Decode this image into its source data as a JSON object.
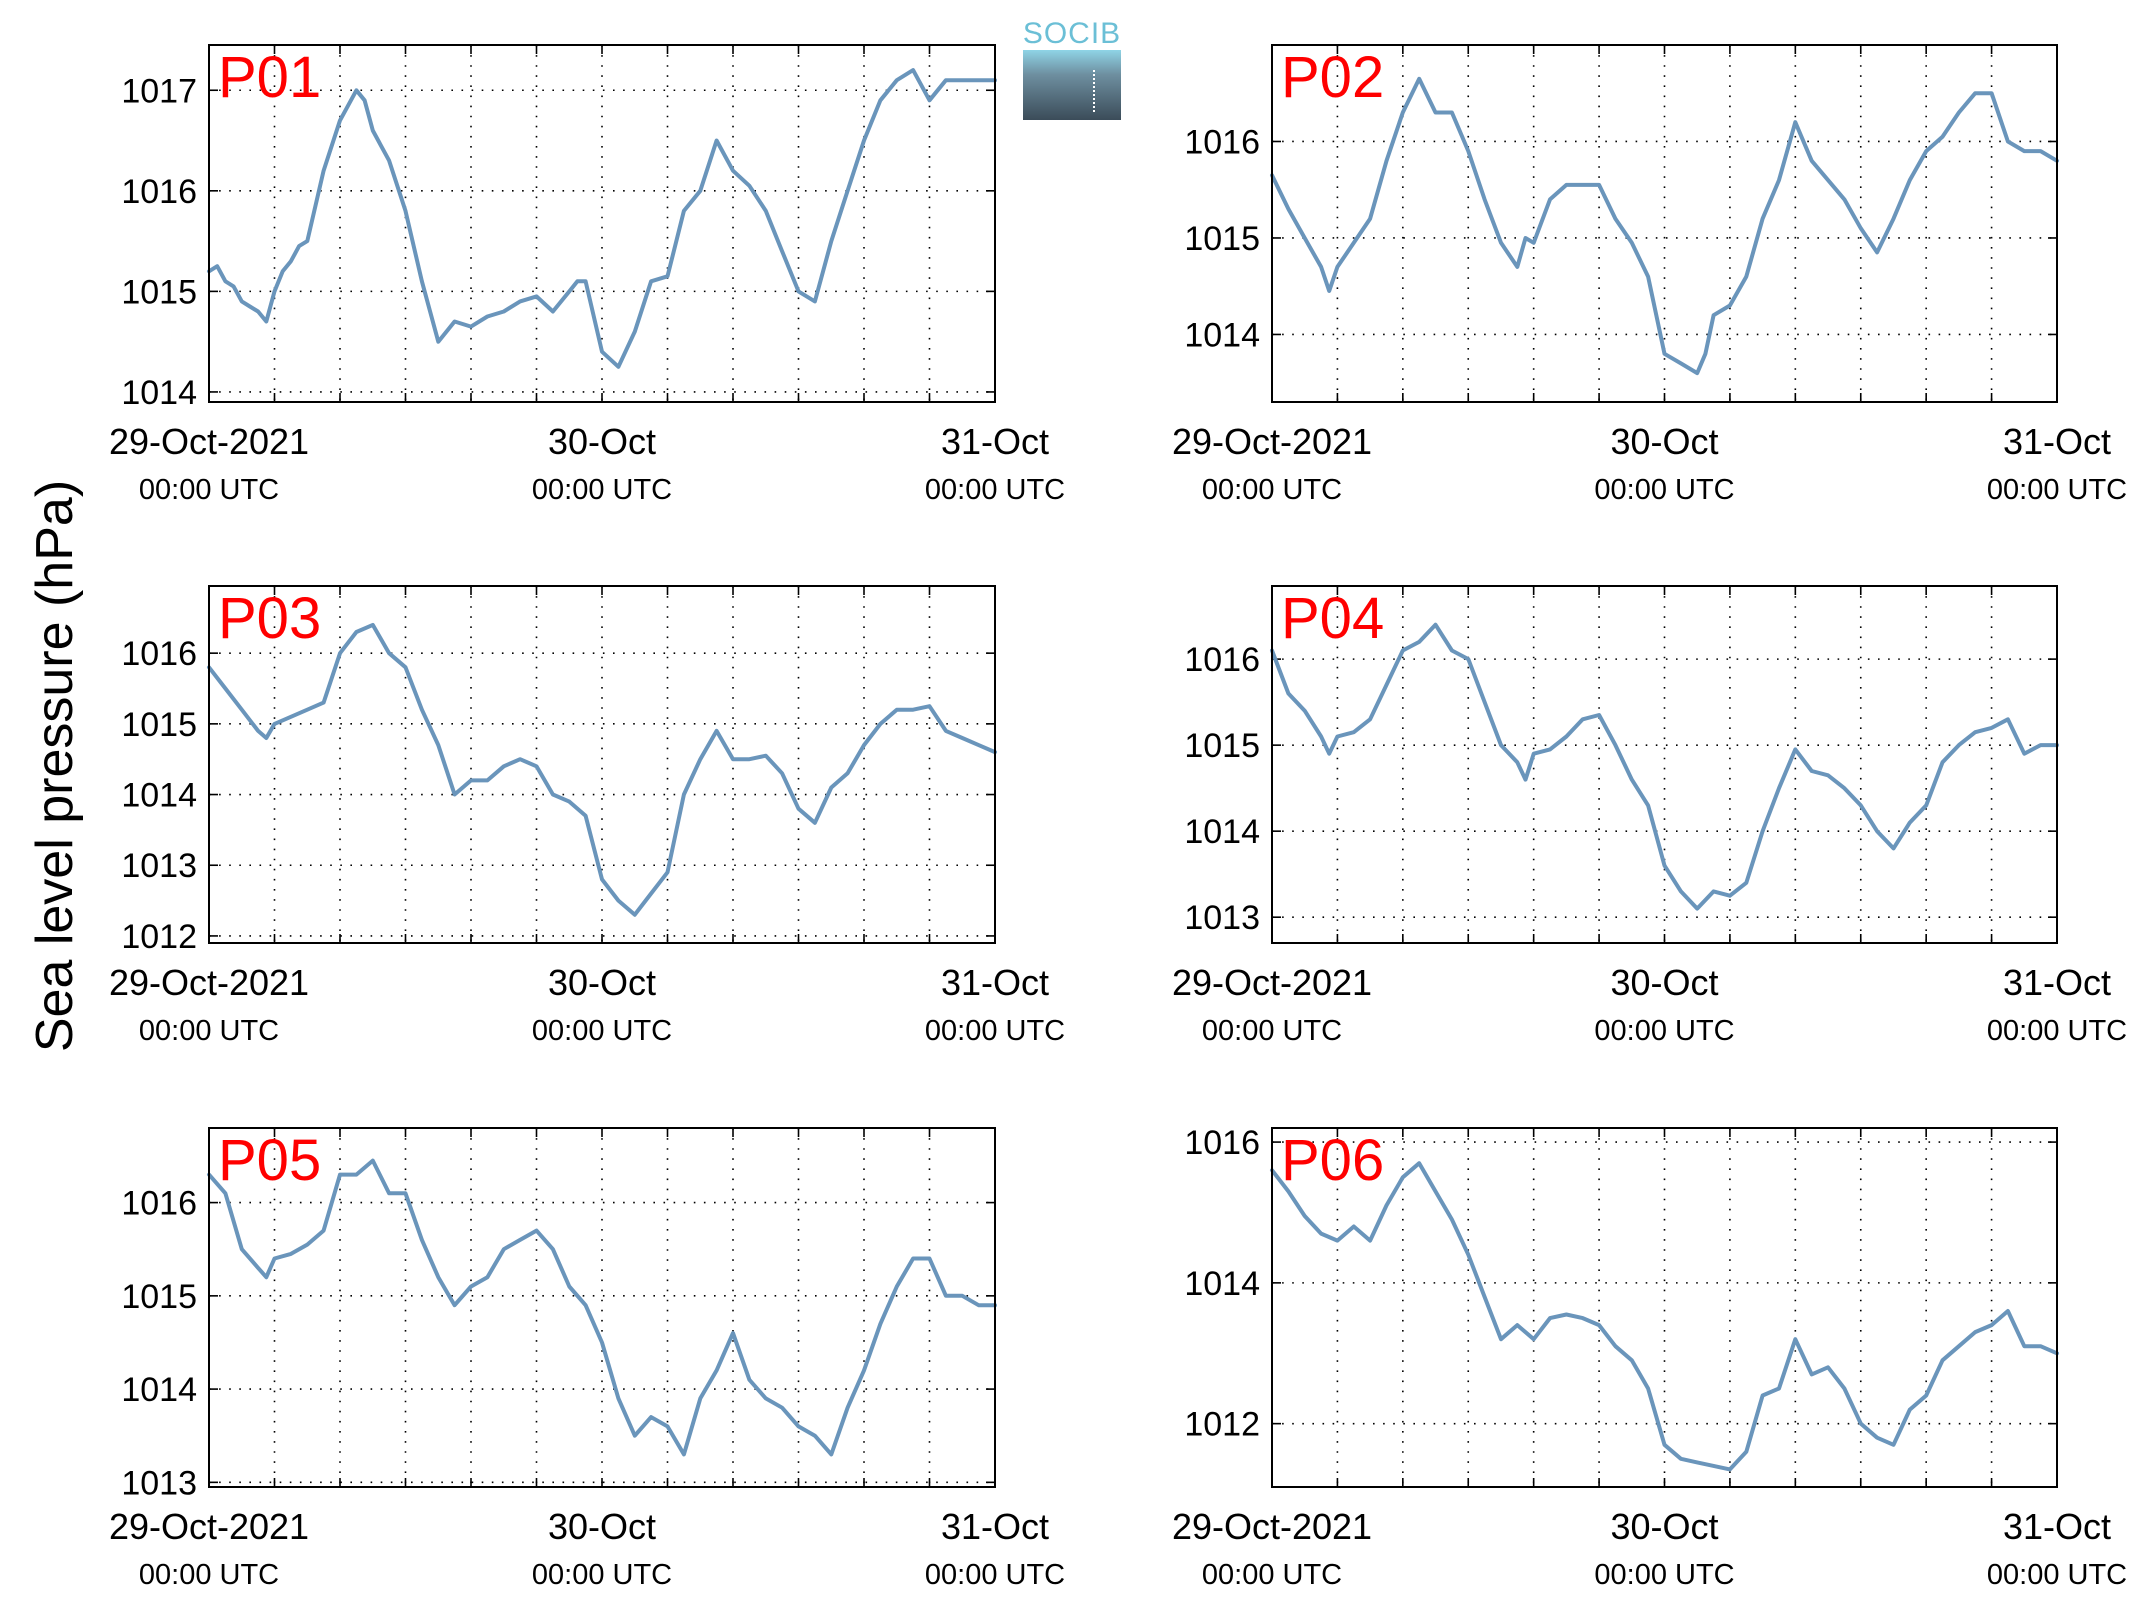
{
  "figure": {
    "ylabel": "Sea level pressure (hPa)",
    "logo_text": "SOCIB",
    "line_color": "#6a95bb",
    "label_color": "#ff0000",
    "time_ticks": [
      {
        "date": "29-Oct-2021",
        "time": "00:00 UTC"
      },
      {
        "date": "30-Oct",
        "time": "00:00 UTC"
      },
      {
        "date": "31-Oct",
        "time": "00:00 UTC"
      }
    ]
  },
  "chart_data": [
    {
      "type": "line",
      "label": "P01",
      "xlabel": "",
      "ylabel": "Sea level pressure (hPa)",
      "x_unit": "hours since 29-Oct-2021 00:00 UTC",
      "xlim": [
        0,
        48
      ],
      "ylim": [
        1013.9,
        1017.45
      ],
      "yticks": [
        1014,
        1015,
        1016,
        1017
      ],
      "grid": true,
      "x": [
        0,
        0.5,
        1,
        1.5,
        2,
        2.5,
        3,
        3.5,
        4,
        4.5,
        5,
        5.5,
        6,
        7,
        8,
        9,
        9.5,
        10,
        11,
        12,
        13,
        13.5,
        14,
        15,
        16,
        17,
        18,
        19,
        20,
        21,
        22,
        22.5,
        23,
        24,
        25,
        26,
        27,
        28,
        29,
        30,
        31,
        32,
        33,
        34,
        35,
        36,
        37,
        38,
        39,
        40,
        41,
        42,
        43,
        44,
        45,
        46,
        47,
        48
      ],
      "values": [
        1015.2,
        1015.25,
        1015.1,
        1015.05,
        1014.9,
        1014.85,
        1014.8,
        1014.7,
        1015.0,
        1015.2,
        1015.3,
        1015.45,
        1015.5,
        1016.2,
        1016.7,
        1017.0,
        1016.9,
        1016.6,
        1016.3,
        1015.8,
        1015.1,
        1014.8,
        1014.5,
        1014.7,
        1014.65,
        1014.75,
        1014.8,
        1014.9,
        1014.95,
        1014.8,
        1015.0,
        1015.1,
        1015.1,
        1014.4,
        1014.25,
        1014.6,
        1015.1,
        1015.15,
        1015.8,
        1016.0,
        1016.5,
        1016.2,
        1016.05,
        1015.8,
        1015.4,
        1015.0,
        1014.9,
        1015.5,
        1016.0,
        1016.5,
        1016.9,
        1017.1,
        1017.2,
        1016.9,
        1017.1,
        1017.1,
        1017.1,
        1017.1
      ],
      "series": [
        {
          "name": "",
          "values": [
            1015.2,
            1015.25,
            1015.1,
            1015.05,
            1014.9,
            1014.85,
            1014.8,
            1014.7,
            1015.0,
            1015.2,
            1015.3,
            1015.45,
            1015.5,
            1016.2,
            1016.7,
            1017.0,
            1016.9,
            1016.6,
            1016.3,
            1015.8,
            1015.1,
            1014.8,
            1014.5,
            1014.7,
            1014.65,
            1014.75,
            1014.8,
            1014.9,
            1014.95,
            1014.8,
            1015.0,
            1015.1,
            1015.1,
            1014.4,
            1014.25,
            1014.6,
            1015.1,
            1015.15,
            1015.8,
            1016.0,
            1016.5,
            1016.2,
            1016.05,
            1015.8,
            1015.4,
            1015.0,
            1014.9,
            1015.5,
            1016.0,
            1016.5,
            1016.9,
            1017.1,
            1017.2,
            1016.9,
            1017.1,
            1017.1,
            1017.1,
            1017.1
          ]
        }
      ]
    },
    {
      "type": "line",
      "label": "P02",
      "xlabel": "",
      "ylabel": "Sea level pressure (hPa)",
      "x_unit": "hours since 29-Oct-2021 00:00 UTC",
      "xlim": [
        0,
        48
      ],
      "ylim": [
        1013.3,
        1017.0
      ],
      "yticks": [
        1014,
        1015,
        1016
      ],
      "grid": true,
      "x": [
        0,
        1,
        2,
        3,
        3.5,
        4,
        5,
        6,
        7,
        8,
        9,
        10,
        11,
        12,
        13,
        14,
        15,
        15.5,
        16,
        17,
        18,
        19,
        20,
        21,
        22,
        23,
        24,
        25,
        26,
        26.5,
        27,
        28,
        29,
        30,
        31,
        32,
        33,
        34,
        35,
        36,
        37,
        38,
        39,
        40,
        41,
        42,
        43,
        44,
        45,
        46,
        47,
        48
      ],
      "values": [
        1015.65,
        1015.3,
        1015.0,
        1014.7,
        1014.45,
        1014.7,
        1014.95,
        1015.2,
        1015.8,
        1016.3,
        1016.65,
        1016.3,
        1016.3,
        1015.9,
        1015.4,
        1014.95,
        1014.7,
        1015.0,
        1014.95,
        1015.4,
        1015.55,
        1015.55,
        1015.55,
        1015.2,
        1014.95,
        1014.6,
        1013.8,
        1013.7,
        1013.6,
        1013.8,
        1014.2,
        1014.3,
        1014.6,
        1015.2,
        1015.6,
        1016.2,
        1015.8,
        1015.6,
        1015.4,
        1015.1,
        1014.85,
        1015.2,
        1015.6,
        1015.9,
        1016.05,
        1016.3,
        1016.5,
        1016.5,
        1016.0,
        1015.9,
        1015.9,
        1015.8
      ],
      "series": [
        {
          "name": "",
          "values": [
            1015.65,
            1015.3,
            1015.0,
            1014.7,
            1014.45,
            1014.7,
            1014.95,
            1015.2,
            1015.8,
            1016.3,
            1016.65,
            1016.3,
            1016.3,
            1015.9,
            1015.4,
            1014.95,
            1014.7,
            1015.0,
            1014.95,
            1015.4,
            1015.55,
            1015.55,
            1015.55,
            1015.2,
            1014.95,
            1014.6,
            1013.8,
            1013.7,
            1013.6,
            1013.8,
            1014.2,
            1014.3,
            1014.6,
            1015.2,
            1015.6,
            1016.2,
            1015.8,
            1015.6,
            1015.4,
            1015.1,
            1014.85,
            1015.2,
            1015.6,
            1015.9,
            1016.05,
            1016.3,
            1016.5,
            1016.5,
            1016.0,
            1015.9,
            1015.9,
            1015.8
          ]
        }
      ]
    },
    {
      "type": "line",
      "label": "P03",
      "xlabel": "",
      "ylabel": "Sea level pressure (hPa)",
      "x_unit": "hours since 29-Oct-2021 00:00 UTC",
      "xlim": [
        0,
        48
      ],
      "ylim": [
        1011.9,
        1016.95
      ],
      "yticks": [
        1012,
        1013,
        1014,
        1015,
        1016
      ],
      "grid": true,
      "x": [
        0,
        1,
        2,
        3,
        3.5,
        4,
        5,
        6,
        7,
        8,
        9,
        10,
        11,
        12,
        13,
        14,
        15,
        16,
        17,
        18,
        19,
        20,
        21,
        22,
        23,
        24,
        25,
        26,
        27,
        28,
        29,
        30,
        31,
        32,
        33,
        34,
        35,
        36,
        37,
        38,
        39,
        40,
        41,
        42,
        43,
        44,
        45,
        46,
        47,
        48
      ],
      "values": [
        1015.8,
        1015.5,
        1015.2,
        1014.9,
        1014.8,
        1015.0,
        1015.1,
        1015.2,
        1015.3,
        1016.0,
        1016.3,
        1016.4,
        1016.0,
        1015.8,
        1015.2,
        1014.7,
        1014.0,
        1014.2,
        1014.2,
        1014.4,
        1014.5,
        1014.4,
        1014.0,
        1013.9,
        1013.7,
        1012.8,
        1012.5,
        1012.3,
        1012.6,
        1012.9,
        1014.0,
        1014.5,
        1014.9,
        1014.5,
        1014.5,
        1014.55,
        1014.3,
        1013.8,
        1013.6,
        1014.1,
        1014.3,
        1014.7,
        1015.0,
        1015.2,
        1015.2,
        1015.25,
        1014.9,
        1014.8,
        1014.7,
        1014.6
      ],
      "series": [
        {
          "name": "",
          "values": [
            1015.8,
            1015.5,
            1015.2,
            1014.9,
            1014.8,
            1015.0,
            1015.1,
            1015.2,
            1015.3,
            1016.0,
            1016.3,
            1016.4,
            1016.0,
            1015.8,
            1015.2,
            1014.7,
            1014.0,
            1014.2,
            1014.2,
            1014.4,
            1014.5,
            1014.4,
            1014.0,
            1013.9,
            1013.7,
            1012.8,
            1012.5,
            1012.3,
            1012.6,
            1012.9,
            1014.0,
            1014.5,
            1014.9,
            1014.5,
            1014.5,
            1014.55,
            1014.3,
            1013.8,
            1013.6,
            1014.1,
            1014.3,
            1014.7,
            1015.0,
            1015.2,
            1015.2,
            1015.25,
            1014.9,
            1014.8,
            1014.7,
            1014.6
          ]
        }
      ]
    },
    {
      "type": "line",
      "label": "P04",
      "xlabel": "",
      "ylabel": "Sea level pressure (hPa)",
      "x_unit": "hours since 29-Oct-2021 00:00 UTC",
      "xlim": [
        0,
        48
      ],
      "ylim": [
        1012.7,
        1016.85
      ],
      "yticks": [
        1013,
        1014,
        1015,
        1016
      ],
      "grid": true,
      "x": [
        0,
        1,
        2,
        3,
        3.5,
        4,
        5,
        6,
        7,
        8,
        9,
        10,
        11,
        12,
        13,
        14,
        15,
        15.5,
        16,
        17,
        18,
        19,
        20,
        21,
        22,
        23,
        24,
        25,
        26,
        27,
        28,
        29,
        30,
        31,
        32,
        33,
        34,
        35,
        36,
        37,
        38,
        39,
        40,
        41,
        42,
        43,
        44,
        45,
        46,
        47,
        48
      ],
      "values": [
        1016.1,
        1015.6,
        1015.4,
        1015.1,
        1014.9,
        1015.1,
        1015.15,
        1015.3,
        1015.7,
        1016.1,
        1016.2,
        1016.4,
        1016.1,
        1016.0,
        1015.5,
        1015.0,
        1014.8,
        1014.6,
        1014.9,
        1014.95,
        1015.1,
        1015.3,
        1015.35,
        1015.0,
        1014.6,
        1014.3,
        1013.6,
        1013.3,
        1013.1,
        1013.3,
        1013.25,
        1013.4,
        1014.0,
        1014.5,
        1014.95,
        1014.7,
        1014.65,
        1014.5,
        1014.3,
        1014.0,
        1013.8,
        1014.1,
        1014.3,
        1014.8,
        1015.0,
        1015.15,
        1015.2,
        1015.3,
        1014.9,
        1015.0,
        1015.0
      ],
      "series": [
        {
          "name": "",
          "values": [
            1016.1,
            1015.6,
            1015.4,
            1015.1,
            1014.9,
            1015.1,
            1015.15,
            1015.3,
            1015.7,
            1016.1,
            1016.2,
            1016.4,
            1016.1,
            1016.0,
            1015.5,
            1015.0,
            1014.8,
            1014.6,
            1014.9,
            1014.95,
            1015.1,
            1015.3,
            1015.35,
            1015.0,
            1014.6,
            1014.3,
            1013.6,
            1013.3,
            1013.1,
            1013.3,
            1013.25,
            1013.4,
            1014.0,
            1014.5,
            1014.95,
            1014.7,
            1014.65,
            1014.5,
            1014.3,
            1014.0,
            1013.8,
            1014.1,
            1014.3,
            1014.8,
            1015.0,
            1015.15,
            1015.2,
            1015.3,
            1014.9,
            1015.0,
            1015.0
          ]
        }
      ]
    },
    {
      "type": "line",
      "label": "P05",
      "xlabel": "",
      "ylabel": "Sea level pressure (hPa)",
      "x_unit": "hours since 29-Oct-2021 00:00 UTC",
      "xlim": [
        0,
        48
      ],
      "ylim": [
        1012.95,
        1016.8
      ],
      "yticks": [
        1013,
        1014,
        1015,
        1016
      ],
      "grid": true,
      "x": [
        0,
        1,
        2,
        3,
        3.5,
        4,
        5,
        6,
        7,
        8,
        9,
        10,
        11,
        12,
        13,
        14,
        15,
        16,
        17,
        18,
        19,
        20,
        21,
        22,
        23,
        24,
        25,
        26,
        27,
        28,
        29,
        30,
        31,
        32,
        33,
        34,
        35,
        36,
        37,
        38,
        39,
        40,
        41,
        42,
        43,
        44,
        45,
        46,
        47,
        48
      ],
      "values": [
        1016.3,
        1016.1,
        1015.5,
        1015.3,
        1015.2,
        1015.4,
        1015.45,
        1015.55,
        1015.7,
        1016.3,
        1016.3,
        1016.45,
        1016.1,
        1016.1,
        1015.6,
        1015.2,
        1014.9,
        1015.1,
        1015.2,
        1015.5,
        1015.6,
        1015.7,
        1015.5,
        1015.1,
        1014.9,
        1014.5,
        1013.9,
        1013.5,
        1013.7,
        1013.6,
        1013.3,
        1013.9,
        1014.2,
        1014.6,
        1014.1,
        1013.9,
        1013.8,
        1013.6,
        1013.5,
        1013.3,
        1013.8,
        1014.2,
        1014.7,
        1015.1,
        1015.4,
        1015.4,
        1015.0,
        1015.0,
        1014.9,
        1014.9
      ],
      "series": [
        {
          "name": "",
          "values": [
            1016.3,
            1016.1,
            1015.5,
            1015.3,
            1015.2,
            1015.4,
            1015.45,
            1015.55,
            1015.7,
            1016.3,
            1016.3,
            1016.45,
            1016.1,
            1016.1,
            1015.6,
            1015.2,
            1014.9,
            1015.1,
            1015.2,
            1015.5,
            1015.6,
            1015.7,
            1015.5,
            1015.1,
            1014.9,
            1014.5,
            1013.9,
            1013.5,
            1013.7,
            1013.6,
            1013.3,
            1013.9,
            1014.2,
            1014.6,
            1014.1,
            1013.9,
            1013.8,
            1013.6,
            1013.5,
            1013.3,
            1013.8,
            1014.2,
            1014.7,
            1015.1,
            1015.4,
            1015.4,
            1015.0,
            1015.0,
            1014.9,
            1014.9
          ]
        }
      ]
    },
    {
      "type": "line",
      "label": "P06",
      "xlabel": "",
      "ylabel": "Sea level pressure (hPa)",
      "x_unit": "hours since 29-Oct-2021 00:00 UTC",
      "xlim": [
        0,
        48
      ],
      "ylim": [
        1011.1,
        1016.2
      ],
      "yticks": [
        1012,
        1014,
        1016
      ],
      "grid": true,
      "x": [
        0,
        1,
        2,
        3,
        4,
        5,
        6,
        7,
        8,
        9,
        10,
        11,
        12,
        13,
        14,
        15,
        16,
        17,
        18,
        19,
        20,
        21,
        22,
        23,
        24,
        25,
        26,
        27,
        28,
        29,
        30,
        31,
        32,
        33,
        34,
        35,
        36,
        37,
        38,
        39,
        40,
        41,
        42,
        43,
        44,
        45,
        46,
        47,
        48
      ],
      "values": [
        1015.6,
        1015.3,
        1014.95,
        1014.7,
        1014.6,
        1014.8,
        1014.6,
        1015.1,
        1015.5,
        1015.7,
        1015.3,
        1014.9,
        1014.4,
        1013.8,
        1013.2,
        1013.4,
        1013.2,
        1013.5,
        1013.55,
        1013.5,
        1013.4,
        1013.1,
        1012.9,
        1012.5,
        1011.7,
        1011.5,
        1011.45,
        1011.4,
        1011.35,
        1011.6,
        1012.4,
        1012.5,
        1013.2,
        1012.7,
        1012.8,
        1012.5,
        1012.0,
        1011.8,
        1011.7,
        1012.2,
        1012.4,
        1012.9,
        1013.1,
        1013.3,
        1013.4,
        1013.6,
        1013.1,
        1013.1,
        1013.0
      ],
      "series": [
        {
          "name": "",
          "values": [
            1015.6,
            1015.3,
            1014.95,
            1014.7,
            1014.6,
            1014.8,
            1014.6,
            1015.1,
            1015.5,
            1015.7,
            1015.3,
            1014.9,
            1014.4,
            1013.8,
            1013.2,
            1013.4,
            1013.2,
            1013.5,
            1013.55,
            1013.5,
            1013.4,
            1013.1,
            1012.9,
            1012.5,
            1011.7,
            1011.5,
            1011.45,
            1011.4,
            1011.35,
            1011.6,
            1012.4,
            1012.5,
            1013.2,
            1012.7,
            1012.8,
            1012.5,
            1012.0,
            1011.8,
            1011.7,
            1012.2,
            1012.4,
            1012.9,
            1013.1,
            1013.3,
            1013.4,
            1013.6,
            1013.1,
            1013.1,
            1013.0
          ]
        }
      ]
    }
  ]
}
